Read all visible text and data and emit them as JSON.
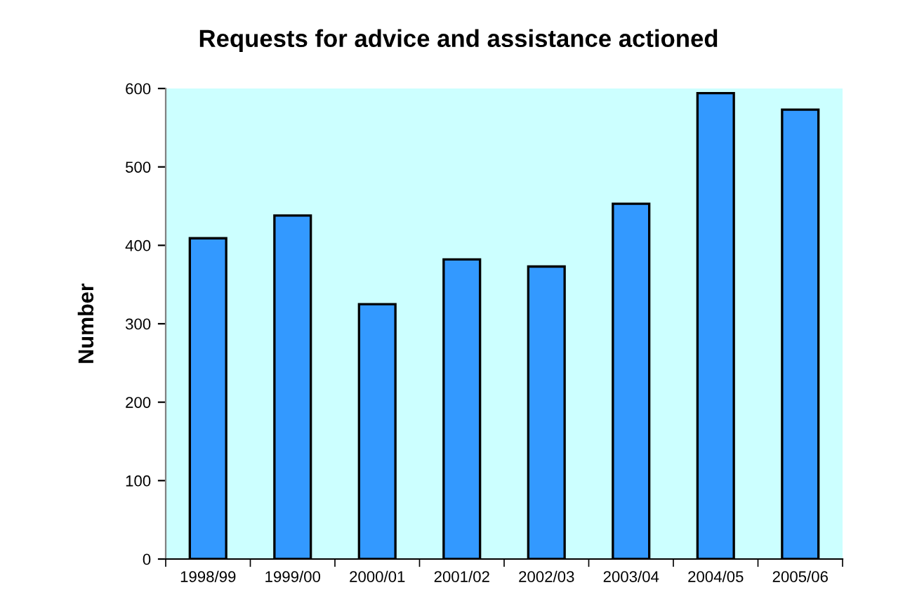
{
  "chart_data": {
    "type": "bar",
    "title": "Requests for advice and assistance actioned",
    "ylabel": "Number",
    "categories": [
      "1998/99",
      "1999/00",
      "2000/01",
      "2001/02",
      "2002/03",
      "2003/04",
      "2004/05",
      "2005/06"
    ],
    "values": [
      409,
      438,
      325,
      382,
      373,
      453,
      594,
      573
    ],
    "color": "#3399ff",
    "ylim": [
      0,
      600
    ],
    "yticks": [
      0,
      100,
      200,
      300,
      400,
      500,
      600
    ],
    "grid": false,
    "legend": false
  }
}
